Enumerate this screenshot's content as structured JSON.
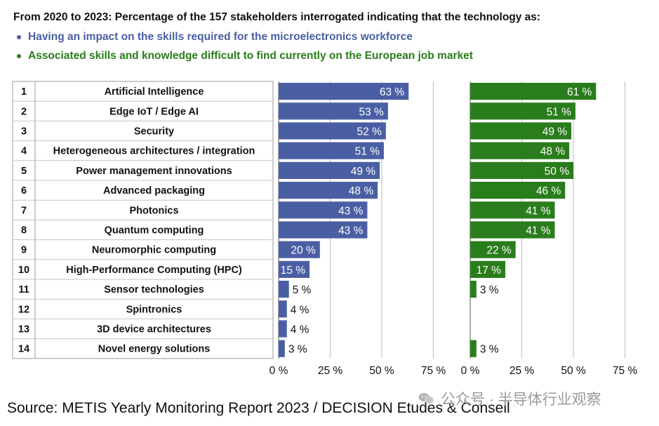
{
  "header": {
    "title": "From 2020 to 2023: Percentage of the 157 stakeholders interrogated indicating that the technology as:",
    "legend_impact": "Having an impact on the skills required for the microelectronics workforce",
    "legend_difficult": "Associated skills and knowledge difficult to find currently on the European job market"
  },
  "footer": {
    "source": "Source: METIS Yearly Monitoring Report 2023 / DECISION Etudes & Conseil",
    "watermark": "公众号 · 半导体行业观察"
  },
  "chart_data": {
    "type": "bar",
    "orientation": "horizontal",
    "ranks": [
      "1",
      "2",
      "3",
      "4",
      "5",
      "6",
      "7",
      "8",
      "9",
      "10",
      "11",
      "12",
      "13",
      "14"
    ],
    "categories": [
      "Artificial Intelligence",
      "Edge IoT / Edge AI",
      "Security",
      "Heterogeneous architectures / integration",
      "Power management innovations",
      "Advanced packaging",
      "Photonics",
      "Quantum computing",
      "Neuromorphic computing",
      "High-Performance Computing (HPC)",
      "Sensor technologies",
      "Spintronics",
      "3D device architectures",
      "Novel energy solutions"
    ],
    "series": [
      {
        "name": "Having an impact on the skills required for the microelectronics workforce",
        "color": "#4a5fa3",
        "values": [
          63,
          53,
          52,
          51,
          49,
          48,
          43,
          43,
          20,
          15,
          5,
          4,
          4,
          3
        ],
        "labels": [
          "63 %",
          "53 %",
          "52 %",
          "51 %",
          "49 %",
          "48 %",
          "43 %",
          "43 %",
          "20 %",
          "15 %",
          "5 %",
          "4 %",
          "4 %",
          "3 %"
        ]
      },
      {
        "name": "Associated skills and knowledge difficult to find currently on the European job market",
        "color": "#2a7d1c",
        "values": [
          61,
          51,
          49,
          48,
          50,
          46,
          41,
          41,
          22,
          17,
          3,
          null,
          null,
          3
        ],
        "labels": [
          "61 %",
          "51 %",
          "49 %",
          "48 %",
          "50 %",
          "46 %",
          "41 %",
          "41 %",
          "22 %",
          "17 %",
          "3 %",
          "",
          "",
          "3 %"
        ]
      }
    ],
    "xlim": [
      0,
      75
    ],
    "xticks": [
      0,
      25,
      50,
      75
    ],
    "xtick_labels": [
      "0 %",
      "25 %",
      "50 %",
      "75 %"
    ],
    "grid": true
  }
}
